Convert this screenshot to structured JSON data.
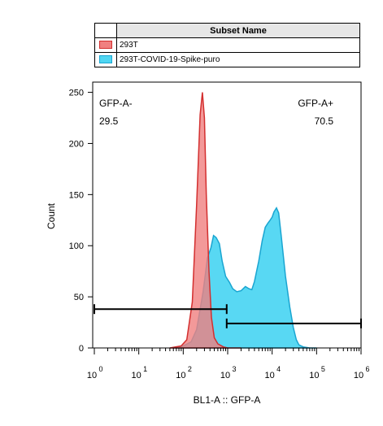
{
  "legend": {
    "header": "Subset Name",
    "items": [
      {
        "label": "293T",
        "fill": "#f08080",
        "stroke": "#d32f2f"
      },
      {
        "label": "293T-COVID-19-Spike-puro",
        "fill": "#4fd6f2",
        "stroke": "#1aa5d1"
      }
    ]
  },
  "chart_data": {
    "type": "area",
    "xlabel": "BL1-A :: GFP-A",
    "ylabel": "Count",
    "xscale": "log",
    "xlim": [
      1,
      1000000
    ],
    "ylim": [
      0,
      260
    ],
    "yticks": [
      0,
      50,
      100,
      150,
      200,
      250
    ],
    "xticks": [
      {
        "value": 1,
        "base": "10",
        "exp": "0"
      },
      {
        "value": 10,
        "base": "10",
        "exp": "1"
      },
      {
        "value": 100,
        "base": "10",
        "exp": "2"
      },
      {
        "value": 1000,
        "base": "10",
        "exp": "3"
      },
      {
        "value": 10000,
        "base": "10",
        "exp": "4"
      },
      {
        "value": 100000,
        "base": "10",
        "exp": "5"
      },
      {
        "value": 1000000,
        "base": "10",
        "exp": "6"
      }
    ],
    "series": [
      {
        "name": "293T",
        "fill": "#f08080",
        "stroke": "#d32f2f",
        "x": [
          50,
          90,
          120,
          160,
          200,
          240,
          270,
          300,
          330,
          380,
          430,
          500,
          600,
          800,
          1000,
          2000
        ],
        "y": [
          0,
          2,
          8,
          45,
          140,
          228,
          250,
          225,
          150,
          75,
          30,
          10,
          4,
          1,
          0,
          0
        ]
      },
      {
        "name": "293T-COVID-19-Spike-puro",
        "fill": "#4fd6f2",
        "stroke": "#1aa5d1",
        "x": [
          60,
          100,
          150,
          200,
          280,
          350,
          420,
          480,
          550,
          650,
          750,
          900,
          1100,
          1300,
          1600,
          2000,
          2500,
          3000,
          3500,
          4000,
          5000,
          6000,
          7000,
          8000,
          9000,
          10000,
          11000,
          12500,
          14000,
          16000,
          20000,
          25000,
          30000,
          35000,
          40000,
          50000,
          70000,
          100000
        ],
        "y": [
          0,
          2,
          6,
          18,
          55,
          88,
          98,
          110,
          108,
          102,
          85,
          70,
          64,
          58,
          55,
          56,
          60,
          58,
          57,
          65,
          85,
          105,
          118,
          122,
          125,
          128,
          133,
          137,
          132,
          110,
          70,
          40,
          20,
          8,
          3,
          1,
          0,
          0
        ]
      }
    ],
    "gates": [
      {
        "name": "GFP-A-",
        "label": "GFP-A-",
        "value": "29.5",
        "x_range": [
          1,
          950
        ],
        "y": 38
      },
      {
        "name": "GFP-A+",
        "label": "GFP-A+",
        "value": "70.5",
        "x_range": [
          950,
          1000000
        ],
        "y": 24
      }
    ]
  }
}
